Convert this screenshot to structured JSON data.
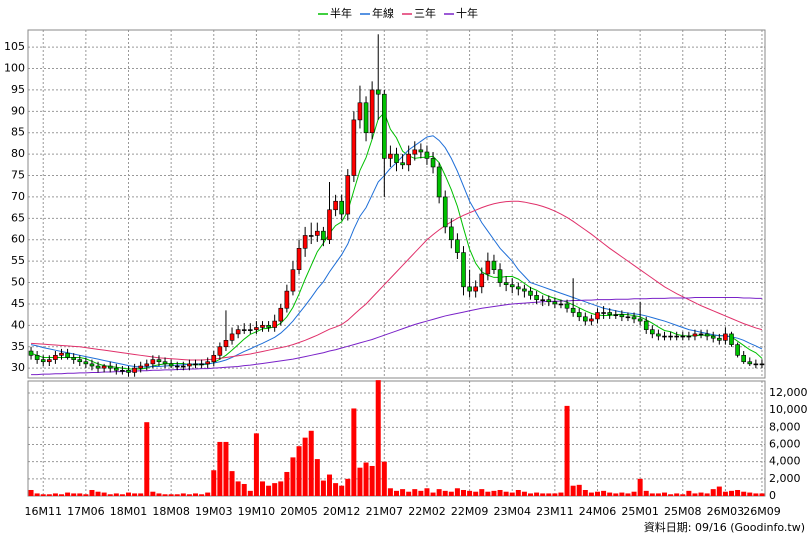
{
  "chart_data": [
    {
      "type": "candlestick",
      "legend": "top",
      "grid": true,
      "up_color": "#ff0000",
      "down_color": "#00c000",
      "categories": [
        null,
        null,
        "16M11",
        null,
        null,
        null,
        null,
        null,
        null,
        "17M06",
        null,
        null,
        null,
        null,
        null,
        null,
        "18M01",
        null,
        null,
        null,
        null,
        null,
        null,
        "18M08",
        null,
        null,
        null,
        null,
        null,
        null,
        "19M03",
        null,
        null,
        null,
        null,
        null,
        null,
        "19M10",
        null,
        null,
        null,
        null,
        null,
        null,
        "20M05",
        null,
        null,
        null,
        null,
        null,
        null,
        "20M12",
        null,
        null,
        null,
        null,
        null,
        null,
        "21M07",
        null,
        null,
        null,
        null,
        null,
        null,
        "22M02",
        null,
        null,
        null,
        null,
        null,
        null,
        "22M09",
        null,
        null,
        null,
        null,
        null,
        null,
        "23M04",
        null,
        null,
        null,
        null,
        null,
        null,
        "23M11",
        null,
        null,
        null,
        null,
        null,
        null,
        "24M06",
        null,
        null,
        null,
        null,
        null,
        null,
        "25M01",
        null,
        null,
        null,
        null,
        null,
        null,
        "25M08",
        null,
        null,
        null,
        null,
        null,
        null,
        "26M03",
        null,
        null,
        null,
        null,
        null,
        "26M09"
      ],
      "open": [
        34,
        33,
        32,
        31.5,
        32,
        33,
        33.5,
        32.5,
        32,
        31.5,
        31,
        30.5,
        30,
        30.5,
        30,
        29.5,
        29.5,
        29,
        30,
        30.5,
        31,
        32,
        31.5,
        31,
        30.5,
        30.5,
        30.5,
        31,
        31,
        31,
        31.5,
        33,
        35,
        36.5,
        38,
        39,
        39,
        39,
        39.5,
        40,
        39.5,
        41,
        44,
        48,
        53,
        58,
        61,
        61,
        62,
        60,
        67,
        69,
        66,
        75,
        88,
        92,
        85,
        95,
        94,
        79,
        80,
        78,
        77.5,
        80,
        81,
        80.5,
        79,
        77,
        70,
        63,
        60,
        57,
        49,
        48,
        49,
        52,
        55,
        53,
        50,
        49.5,
        49,
        48.5,
        48,
        47,
        46,
        46,
        45.5,
        45,
        45,
        44,
        43,
        42,
        41,
        41.5,
        43,
        43,
        42.5,
        42.5,
        42,
        42,
        41.5,
        41,
        39,
        38,
        37.5,
        37.5,
        37.5,
        37.5,
        37.5,
        37.5,
        38,
        38,
        37.5,
        37,
        36.5,
        38,
        35.5,
        33,
        31.5,
        31,
        31
      ],
      "high": [
        35,
        34,
        33,
        33,
        34,
        34.5,
        34.5,
        33.5,
        33,
        32.5,
        32,
        31.5,
        31,
        31.5,
        31,
        30.5,
        30.5,
        31,
        31.5,
        32,
        33,
        33,
        32.5,
        32,
        31.5,
        31.5,
        32,
        32,
        32,
        32.5,
        34,
        36,
        43.5,
        39.5,
        40,
        40.5,
        40.5,
        41,
        41,
        41,
        42.5,
        45,
        49.5,
        55,
        60,
        63,
        64,
        64,
        63,
        73.5,
        70.5,
        70.5,
        76.5,
        90,
        96,
        93.5,
        97,
        108,
        95,
        82,
        81.5,
        80,
        82,
        83,
        82.5,
        82,
        80.5,
        78,
        71.5,
        65,
        61.5,
        58.5,
        53,
        50.5,
        53.5,
        57,
        56.5,
        54.5,
        51.5,
        51,
        50,
        49.5,
        49,
        48,
        47,
        47,
        46.5,
        46,
        46,
        51,
        44,
        43,
        42.5,
        44,
        44.5,
        44,
        43.5,
        43.5,
        43,
        43,
        45.5,
        42,
        40,
        39,
        38.5,
        38.5,
        38.5,
        38.5,
        38.5,
        39,
        39,
        39,
        38.5,
        38,
        39.5,
        38.5,
        36,
        34,
        32.5,
        32,
        32
      ],
      "low": [
        32,
        31,
        30.5,
        30.5,
        31,
        32,
        32,
        31,
        30.5,
        30,
        29.5,
        29,
        29,
        29,
        28.5,
        28.5,
        28,
        28,
        29,
        29.5,
        30,
        30.5,
        30,
        30,
        29.5,
        29.5,
        29.5,
        30,
        30,
        30,
        30.5,
        32,
        34,
        35.5,
        37,
        38,
        38,
        38,
        38.5,
        38.5,
        38.5,
        40,
        43,
        47,
        52,
        56,
        59,
        59.5,
        58.5,
        59,
        65.5,
        64.5,
        64.5,
        73.5,
        86,
        83,
        83.5,
        88,
        70,
        77,
        76,
        76.5,
        76,
        78.5,
        79,
        77.5,
        75.5,
        68.5,
        61.5,
        58,
        55.5,
        47,
        46.5,
        46.5,
        47.5,
        50.5,
        52,
        49,
        48,
        47.5,
        47,
        46.5,
        46,
        45,
        44.5,
        44.5,
        44,
        44,
        43,
        42,
        41,
        40,
        40,
        40.5,
        41.5,
        41.5,
        41.5,
        41,
        41,
        40.5,
        40,
        38,
        37,
        36.5,
        36.5,
        36.5,
        36.5,
        36.5,
        36.5,
        36.5,
        37,
        36.5,
        36,
        35.5,
        35.5,
        35,
        32.5,
        31,
        30.5,
        30,
        30
      ],
      "close": [
        33,
        32,
        31.5,
        32,
        33,
        33.5,
        32.5,
        32,
        31.5,
        31,
        30.5,
        30,
        30.5,
        30,
        29.5,
        29.5,
        29,
        30,
        30.5,
        31,
        32,
        31.5,
        31,
        30.5,
        30.5,
        30.5,
        31,
        31,
        31,
        31.5,
        33,
        35,
        36.5,
        38,
        39,
        39,
        39,
        39.5,
        40,
        39.5,
        41,
        44,
        48,
        53,
        58,
        61,
        61,
        62,
        60,
        67,
        69,
        66,
        75,
        88,
        92,
        85,
        95,
        94,
        79,
        80,
        78,
        77.5,
        80,
        81,
        80.5,
        79,
        77,
        70,
        63,
        60,
        57,
        49,
        48,
        49,
        52,
        55,
        53,
        50,
        49.5,
        49,
        48.5,
        48,
        47,
        46,
        46,
        45.5,
        45,
        45,
        44,
        43,
        42,
        41,
        41.5,
        43,
        43,
        42.5,
        42.5,
        42,
        42,
        41.5,
        41,
        39,
        38,
        37.5,
        37.5,
        37.5,
        37.5,
        37.5,
        37.5,
        38,
        38,
        37.5,
        37,
        36.5,
        38,
        35.5,
        33,
        31.5,
        31,
        31,
        31
      ],
      "series": [
        {
          "name": "半年",
          "color": "#00c000",
          "values": [
            33.5,
            33,
            32.5,
            32.5,
            32.5,
            32.5,
            32.5,
            32.5,
            32.5,
            32.2,
            31.6,
            31,
            30.6,
            30.4,
            30.2,
            30,
            29.8,
            29.8,
            29.8,
            30,
            30.5,
            30.8,
            31,
            31.1,
            31.1,
            31.1,
            30.8,
            30.8,
            30.8,
            30.9,
            31.3,
            32.1,
            33,
            34.2,
            35.5,
            36.8,
            37.9,
            38.5,
            39.2,
            39.3,
            39.7,
            40.5,
            42,
            44.2,
            47.3,
            50.8,
            54,
            57.2,
            59.2,
            61.5,
            63.3,
            64.2,
            66.7,
            71.5,
            76.2,
            79.2,
            83.5,
            88.2,
            89.7,
            85.8,
            83.8,
            80.7,
            79.6,
            79,
            79.2,
            79.3,
            79.5,
            78,
            75,
            71.7,
            67.8,
            62.7,
            57.8,
            54.5,
            52.5,
            51.7,
            51.2,
            51.2,
            51.4,
            51.4,
            50.8,
            49.8,
            48.8,
            48.2,
            47.4,
            46.8,
            46.3,
            45.9,
            45.4,
            44.8,
            44.1,
            43.4,
            42.8,
            42.4,
            42.3,
            42.3,
            42.5,
            42.6,
            42.5,
            42.3,
            42,
            41.3,
            40.5,
            39.6,
            38.8,
            38.5,
            37.9,
            37.6,
            37.5,
            37.6,
            37.7,
            37.7,
            37.7,
            37.6,
            37.6,
            37.3,
            36.3,
            35.3,
            34.3,
            33.6,
            32.3
          ]
        },
        {
          "name": "年線",
          "color": "#1f6fd8",
          "values": [
            35.5,
            35.2,
            34.8,
            34.5,
            34.2,
            33.9,
            33.6,
            33.3,
            33,
            32.7,
            32.4,
            32.1,
            31.8,
            31.5,
            31.2,
            30.9,
            30.6,
            30.4,
            30.3,
            30.3,
            30.4,
            30.4,
            30.5,
            30.6,
            30.7,
            30.8,
            30.9,
            31,
            31,
            31,
            31.2,
            31.5,
            31.9,
            32.5,
            33.2,
            33.9,
            34.5,
            35.2,
            35.8,
            36.5,
            37.2,
            38.2,
            39.5,
            41,
            42.8,
            44.6,
            46.5,
            48.5,
            50.2,
            52.5,
            54.5,
            56.5,
            59,
            62.5,
            65.5,
            67.5,
            70.5,
            73.5,
            75,
            76.7,
            78,
            79.5,
            81,
            82,
            83,
            84,
            84.3,
            83.2,
            81.5,
            79,
            76,
            72.5,
            69,
            66.5,
            64,
            62,
            60,
            58,
            56.5,
            55,
            53,
            51.5,
            50,
            49.5,
            49,
            48.5,
            48,
            47.5,
            47,
            46.5,
            46,
            45.5,
            45,
            44.5,
            44,
            43.7,
            43.4,
            43.1,
            42.9,
            42.7,
            42.5,
            42.2,
            41.8,
            41.4,
            41,
            40.5,
            40,
            39.5,
            39,
            38.7,
            38.4,
            38.1,
            37.8,
            37.6,
            37.5,
            37.3,
            37,
            36.5,
            35.8,
            35.2,
            34.5
          ]
        },
        {
          "name": "三年",
          "color": "#e0306a",
          "values": [
            35.8,
            35.7,
            35.6,
            35.5,
            35.4,
            35.3,
            35.2,
            35.1,
            35,
            34.8,
            34.6,
            34.4,
            34.2,
            34,
            33.8,
            33.6,
            33.4,
            33.2,
            33,
            32.8,
            32.6,
            32.4,
            32.3,
            32.2,
            32.1,
            32,
            31.9,
            31.9,
            31.9,
            32,
            32.1,
            32.3,
            32.5,
            32.7,
            32.9,
            33.1,
            33.3,
            33.6,
            33.9,
            34.2,
            34.5,
            34.8,
            35.1,
            35.5,
            36,
            36.5,
            37.1,
            37.7,
            38.4,
            39.1,
            39.6,
            40.2,
            41.2,
            42.5,
            43.8,
            45,
            46.5,
            48,
            49.5,
            51,
            52.5,
            54,
            55.5,
            57,
            58.5,
            60,
            61.2,
            62.3,
            63.3,
            64.2,
            65,
            65.7,
            66.3,
            66.9,
            67.5,
            68,
            68.4,
            68.7,
            68.9,
            69,
            69,
            68.8,
            68.5,
            68.2,
            67.8,
            67.3,
            66.7,
            66,
            65.2,
            64.3,
            63.3,
            62.3,
            61.3,
            60.2,
            59.1,
            58,
            57,
            56,
            55,
            54,
            53,
            52,
            51,
            50,
            49,
            48.2,
            47.4,
            46.7,
            46,
            45.3,
            44.6,
            44,
            43.4,
            42.8,
            42.2,
            41.6,
            41,
            40.4,
            39.9,
            39.4,
            39
          ]
        },
        {
          "name": "十年",
          "color": "#7a22c8",
          "values": [
            28.5,
            28.5,
            28.6,
            28.6,
            28.7,
            28.7,
            28.8,
            28.8,
            28.9,
            28.9,
            29,
            29,
            29.1,
            29.1,
            29.2,
            29.2,
            29.3,
            29.3,
            29.4,
            29.4,
            29.5,
            29.5,
            29.6,
            29.6,
            29.7,
            29.7,
            29.8,
            29.8,
            29.9,
            29.9,
            30,
            30.1,
            30.2,
            30.3,
            30.4,
            30.6,
            30.7,
            30.9,
            31.1,
            31.3,
            31.5,
            31.7,
            31.9,
            32.1,
            32.4,
            32.7,
            33,
            33.3,
            33.6,
            34,
            34.3,
            34.7,
            35.1,
            35.5,
            35.9,
            36.3,
            36.7,
            37.2,
            37.7,
            38.2,
            38.7,
            39.2,
            39.7,
            40.2,
            40.6,
            41,
            41.4,
            41.8,
            42.2,
            42.5,
            42.8,
            43.1,
            43.4,
            43.7,
            44,
            44.2,
            44.4,
            44.6,
            44.8,
            45,
            45.1,
            45.2,
            45.3,
            45.4,
            45.5,
            45.6,
            45.6,
            45.7,
            45.7,
            45.8,
            45.8,
            45.9,
            45.9,
            46,
            46,
            46,
            46.1,
            46.1,
            46.1,
            46.2,
            46.2,
            46.2,
            46.3,
            46.3,
            46.3,
            46.4,
            46.4,
            46.4,
            46.4,
            46.5,
            46.5,
            46.5,
            46.5,
            46.5,
            46.5,
            46.5,
            46.5,
            46.4,
            46.4,
            46.3,
            46.3
          ]
        }
      ],
      "ylim": [
        27.7,
        109
      ],
      "yticks": [
        30,
        35,
        40,
        45,
        50,
        55,
        60,
        65,
        70,
        75,
        80,
        85,
        90,
        95,
        100,
        105
      ]
    },
    {
      "type": "bar",
      "color": "#ff0000",
      "grid": true,
      "values": [
        700,
        300,
        200,
        200,
        300,
        200,
        400,
        300,
        300,
        200,
        700,
        500,
        400,
        200,
        300,
        200,
        400,
        300,
        300,
        8600,
        500,
        300,
        200,
        200,
        200,
        300,
        200,
        300,
        200,
        400,
        3000,
        6300,
        6300,
        2900,
        1700,
        1400,
        600,
        7300,
        1700,
        1200,
        1500,
        1700,
        2800,
        4500,
        5800,
        6800,
        7600,
        4300,
        1800,
        2500,
        1500,
        1200,
        2000,
        10200,
        3300,
        3900,
        3500,
        13500,
        4000,
        900,
        600,
        800,
        500,
        800,
        600,
        900,
        400,
        800,
        600,
        500,
        900,
        700,
        600,
        500,
        800,
        500,
        600,
        700,
        500,
        400,
        700,
        500,
        300,
        400,
        300,
        300,
        300,
        400,
        10500,
        1200,
        1300,
        700,
        400,
        500,
        600,
        400,
        300,
        400,
        300,
        500,
        2000,
        600,
        300,
        300,
        400,
        200,
        300,
        200,
        600,
        300,
        400,
        300,
        800,
        1100,
        500,
        600,
        700,
        500,
        400,
        300,
        300
      ],
      "ylim": [
        0,
        13400
      ],
      "yticks": [
        0,
        {
          "value": 2000,
          "label": "2,000"
        },
        {
          "value": 4000,
          "label": "4,000"
        },
        {
          "value": 6000,
          "label": "6,000"
        },
        {
          "value": 8000,
          "label": "8,000"
        },
        {
          "value": 10000,
          "label": "10,000"
        },
        {
          "value": 12000,
          "label": "12,000"
        }
      ]
    }
  ],
  "source_note": "資料日期: 09/16  (Goodinfo.tw)"
}
